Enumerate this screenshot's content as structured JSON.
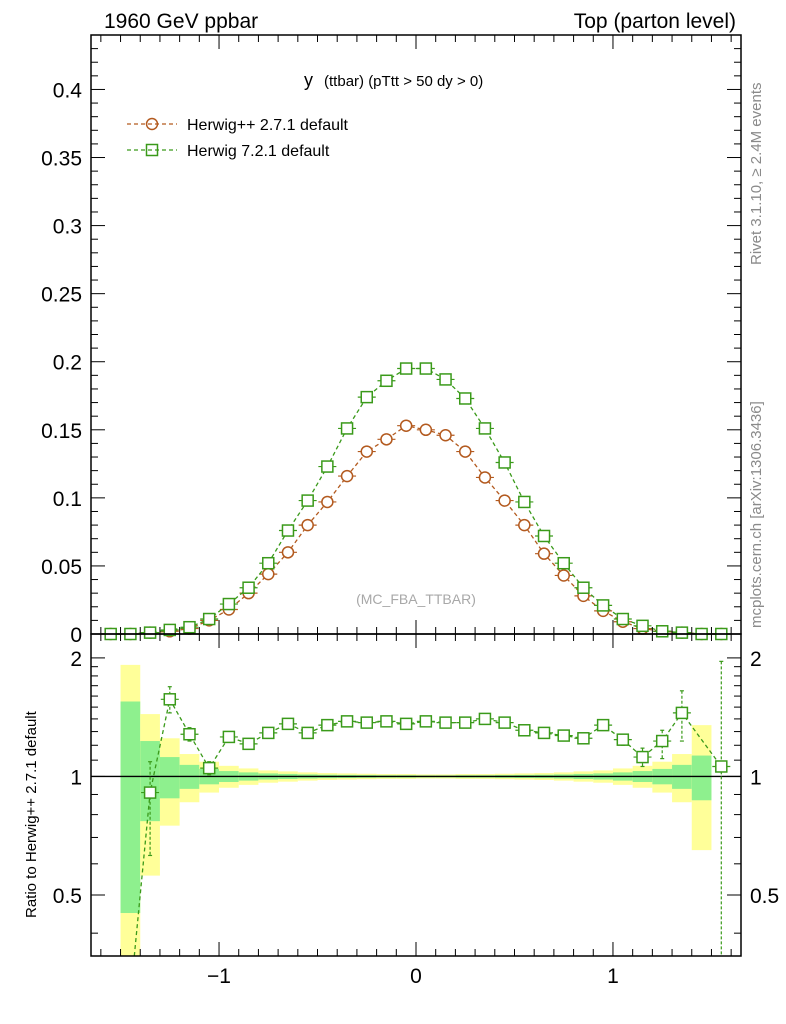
{
  "header": {
    "left": "1960 GeV ppbar",
    "right": "Top (parton level)"
  },
  "sidebar": {
    "rivet": "Rivet 3.1.10, ≥ 2.4M events",
    "mcplots": "mcplots.cern.ch [arXiv:1306.3436]"
  },
  "colors": {
    "herwig_pp": "#b35a1f",
    "herwig_7": "#3a9a1a",
    "band_inner": "#8ef08e",
    "band_outer": "#ffff99"
  },
  "chart_data": [
    {
      "type": "line",
      "title_main": "y",
      "title_sub": "(ttbar) (pTtt > 50 dy > 0)",
      "annotation": "(MC_FBA_TTBAR)",
      "xlim": [
        -1.65,
        1.65
      ],
      "ylim": [
        0,
        0.44
      ],
      "yticks": [
        "0",
        "0.05",
        "0.1",
        "0.15",
        "0.2",
        "0.25",
        "0.3",
        "0.35",
        "0.4"
      ],
      "legend_placement": "top-left",
      "x": [
        -1.55,
        -1.45,
        -1.35,
        -1.25,
        -1.15,
        -1.05,
        -0.95,
        -0.85,
        -0.75,
        -0.65,
        -0.55,
        -0.45,
        -0.35,
        -0.25,
        -0.15,
        -0.05,
        0.05,
        0.15,
        0.25,
        0.35,
        0.45,
        0.55,
        0.65,
        0.75,
        0.85,
        0.95,
        1.05,
        1.15,
        1.25,
        1.35,
        1.45,
        1.55
      ],
      "series": [
        {
          "name": "Herwig++ 2.7.1 default",
          "marker": "circle",
          "values": [
            0.0,
            0.0,
            0.001,
            0.002,
            0.004,
            0.01,
            0.018,
            0.03,
            0.044,
            0.06,
            0.08,
            0.097,
            0.116,
            0.134,
            0.143,
            0.153,
            0.15,
            0.146,
            0.134,
            0.115,
            0.098,
            0.08,
            0.059,
            0.043,
            0.028,
            0.017,
            0.009,
            0.004,
            0.002,
            0.001,
            0.0,
            0.0
          ]
        },
        {
          "name": "Herwig 7.2.1 default",
          "marker": "square",
          "values": [
            0.0,
            0.0,
            0.001,
            0.003,
            0.005,
            0.011,
            0.022,
            0.034,
            0.052,
            0.076,
            0.098,
            0.123,
            0.151,
            0.174,
            0.186,
            0.195,
            0.195,
            0.187,
            0.173,
            0.151,
            0.126,
            0.097,
            0.072,
            0.052,
            0.034,
            0.021,
            0.011,
            0.006,
            0.002,
            0.001,
            0.0,
            0.0
          ]
        }
      ]
    },
    {
      "type": "line",
      "ylabel": "Ratio to Herwig++ 2.7.1 default",
      "xlim": [
        -1.65,
        1.65
      ],
      "ylim": [
        0.35,
        2.3
      ],
      "yticks": [
        "0.5",
        "1",
        "2"
      ],
      "xticks": [
        "−1",
        "0",
        "1"
      ],
      "reference_line": 1,
      "x_edges": [
        -1.5,
        -1.4,
        -1.3,
        -1.2,
        -1.1,
        -1.0,
        -0.9,
        -0.8,
        -0.7,
        -0.6,
        -0.5,
        -0.4,
        -0.3,
        -0.2,
        -0.1,
        0.0,
        0.1,
        0.2,
        0.3,
        0.4,
        0.5,
        0.6,
        0.7,
        0.8,
        0.9,
        1.0,
        1.1,
        1.2,
        1.3,
        1.4,
        1.5,
        1.6
      ],
      "band_inner": [
        0.55,
        0.23,
        0.12,
        0.07,
        0.045,
        0.032,
        0.024,
        0.018,
        0.015,
        0.012,
        0.01,
        0.009,
        0.008,
        0.007,
        0.007,
        0.006,
        0.006,
        0.007,
        0.007,
        0.008,
        0.009,
        0.01,
        0.012,
        0.015,
        0.018,
        0.024,
        0.032,
        0.045,
        0.07,
        0.13,
        null,
        1.0
      ],
      "band_outer": [
        0.92,
        0.44,
        0.25,
        0.14,
        0.09,
        0.064,
        0.048,
        0.036,
        0.03,
        0.024,
        0.02,
        0.018,
        0.016,
        0.014,
        0.014,
        0.012,
        0.012,
        0.014,
        0.014,
        0.016,
        0.018,
        0.02,
        0.024,
        0.03,
        0.036,
        0.048,
        0.064,
        0.09,
        0.14,
        0.35,
        null,
        1.6
      ],
      "x": [
        -1.35,
        -1.25,
        -1.15,
        -1.05,
        -0.95,
        -0.85,
        -0.75,
        -0.65,
        -0.55,
        -0.45,
        -0.35,
        -0.25,
        -0.15,
        -0.05,
        0.05,
        0.15,
        0.25,
        0.35,
        0.45,
        0.55,
        0.65,
        0.75,
        0.85,
        0.95,
        1.05,
        1.15,
        1.25,
        1.35,
        1.55
      ],
      "series": [
        {
          "name": "Herwig 7.2.1 default",
          "values": [
            0.91,
            1.57,
            1.28,
            1.05,
            1.26,
            1.21,
            1.29,
            1.36,
            1.29,
            1.35,
            1.38,
            1.37,
            1.38,
            1.36,
            1.38,
            1.37,
            1.37,
            1.4,
            1.37,
            1.31,
            1.29,
            1.27,
            1.25,
            1.35,
            1.24,
            1.12,
            1.23,
            1.45,
            1.06
          ],
          "err_low": [
            0.28,
            0.12,
            0.05,
            0.04,
            0.025,
            0.02,
            0.015,
            0.01,
            0.01,
            0.01,
            0.01,
            0.01,
            0.01,
            0.01,
            0.01,
            0.01,
            0.01,
            0.01,
            0.01,
            0.01,
            0.015,
            0.02,
            0.025,
            0.03,
            0.04,
            0.06,
            0.12,
            0.22,
            0.8
          ],
          "err_high": [
            0.18,
            0.12,
            0.05,
            0.04,
            0.025,
            0.02,
            0.015,
            0.01,
            0.01,
            0.01,
            0.01,
            0.01,
            0.01,
            0.01,
            0.01,
            0.01,
            0.01,
            0.01,
            0.01,
            0.01,
            0.015,
            0.02,
            0.025,
            0.03,
            0.04,
            0.06,
            0.08,
            0.2,
            0.9
          ]
        }
      ]
    }
  ]
}
